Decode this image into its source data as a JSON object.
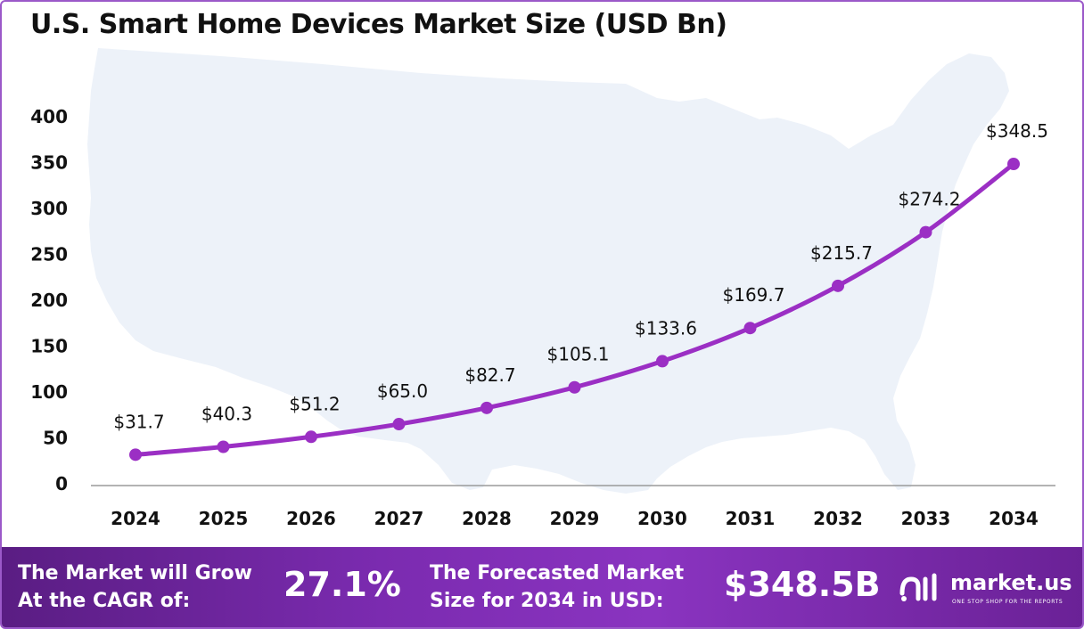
{
  "title": "U.S. Smart Home Devices Market Size (USD Bn)",
  "colors": {
    "line": "#9b2fc4",
    "map": "#edf2f9",
    "footer_start": "#5a1d83",
    "footer_end": "#8a34c0",
    "axis": "#999999"
  },
  "chart_data": {
    "type": "line",
    "title": "U.S. Smart Home Devices Market Size (USD Bn)",
    "xlabel": "",
    "ylabel": "",
    "categories": [
      "2024",
      "2025",
      "2026",
      "2027",
      "2028",
      "2029",
      "2030",
      "2031",
      "2032",
      "2033",
      "2034"
    ],
    "values": [
      31.7,
      40.3,
      51.2,
      65.0,
      82.7,
      105.1,
      133.6,
      169.7,
      215.7,
      274.2,
      348.5
    ],
    "data_labels": [
      "$31.7",
      "$40.3",
      "$51.2",
      "$65.0",
      "$82.7",
      "$105.1",
      "$133.6",
      "$169.7",
      "$215.7",
      "$274.2",
      "$348.5"
    ],
    "y_ticks": [
      "0",
      "50",
      "100",
      "150",
      "200",
      "250",
      "300",
      "350",
      "400"
    ],
    "ylim": [
      0,
      400
    ],
    "grid": false,
    "legend": "none"
  },
  "footer": {
    "cagr_label_line1": "The Market will Grow",
    "cagr_label_line2": "At the CAGR of:",
    "cagr_value": "27.1%",
    "forecast_label_line1": "The Forecasted Market",
    "forecast_label_line2": "Size for 2034 in USD:",
    "forecast_value": "$348.5B",
    "brand_name": "market.us",
    "brand_tagline": "ONE STOP SHOP FOR THE REPORTS",
    "brand_icon": "market-us-logo-icon"
  }
}
